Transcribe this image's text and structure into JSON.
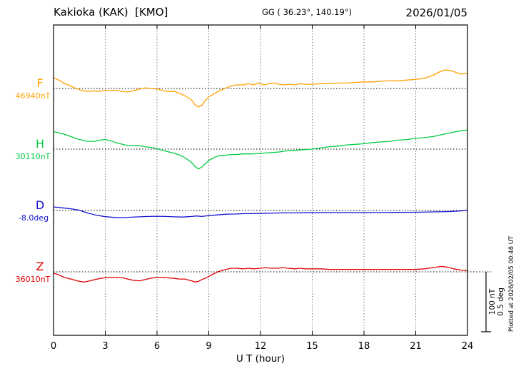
{
  "header": {
    "station": "Kakioka (KAK)  [KMO]",
    "coords": "GG ( 36.23°, 140.19°)",
    "date": "2026/01/05"
  },
  "scale_bar": {
    "top_label": "100 nT",
    "bottom_label": "0.5 deg"
  },
  "plotted_at": "Plotted at 2026/02/05 00:48 UT",
  "chart_data": {
    "type": "line",
    "title": "Kakioka (KAK) [KMO] magnetogram 2026/01/05",
    "xlabel": "U T (hour)",
    "x_range": [
      0,
      24
    ],
    "x_ticks": [
      0,
      3,
      6,
      9,
      12,
      15,
      18,
      21,
      24
    ],
    "grid": "dotted vertical every 3 h, dotted horizontal baseline per trace",
    "scale": {
      "nT_per_bar": 100,
      "deg_per_bar": 0.5
    },
    "series": [
      {
        "name": "F",
        "unit": "nT",
        "color": "#FFA000",
        "baseline_value": 46940,
        "baseline_label": "46940nT",
        "points": [
          [
            0,
            18
          ],
          [
            0.3,
            14
          ],
          [
            0.6,
            9
          ],
          [
            1,
            4
          ],
          [
            1.3,
            0
          ],
          [
            1.6,
            -3
          ],
          [
            2,
            -5
          ],
          [
            2.3,
            -4
          ],
          [
            2.6,
            -5
          ],
          [
            3,
            -3
          ],
          [
            3.3,
            -4
          ],
          [
            3.6,
            -3
          ],
          [
            4,
            -5
          ],
          [
            4.3,
            -6
          ],
          [
            4.6,
            -4
          ],
          [
            5,
            -1
          ],
          [
            5.3,
            1
          ],
          [
            5.6,
            0
          ],
          [
            6,
            -1
          ],
          [
            6.3,
            -3
          ],
          [
            6.6,
            -5
          ],
          [
            7,
            -5
          ],
          [
            7.3,
            -8
          ],
          [
            7.6,
            -12
          ],
          [
            8,
            -19
          ],
          [
            8.2,
            -27
          ],
          [
            8.4,
            -31
          ],
          [
            8.6,
            -28
          ],
          [
            8.8,
            -20
          ],
          [
            9,
            -14
          ],
          [
            9.3,
            -9
          ],
          [
            9.6,
            -4
          ],
          [
            10,
            1
          ],
          [
            10.3,
            4
          ],
          [
            10.6,
            6
          ],
          [
            11,
            6
          ],
          [
            11.3,
            8
          ],
          [
            11.6,
            6
          ],
          [
            11.9,
            9
          ],
          [
            12.2,
            6
          ],
          [
            12.5,
            8
          ],
          [
            12.8,
            9
          ],
          [
            13.1,
            7
          ],
          [
            13.4,
            6
          ],
          [
            13.7,
            7
          ],
          [
            14,
            6
          ],
          [
            14.3,
            8
          ],
          [
            14.6,
            7
          ],
          [
            15,
            7
          ],
          [
            15.5,
            8
          ],
          [
            16,
            8
          ],
          [
            16.5,
            9
          ],
          [
            17,
            9
          ],
          [
            17.5,
            10
          ],
          [
            18,
            11
          ],
          [
            18.5,
            11
          ],
          [
            19,
            12
          ],
          [
            19.5,
            13
          ],
          [
            20,
            13
          ],
          [
            20.5,
            14
          ],
          [
            21,
            15
          ],
          [
            21.5,
            17
          ],
          [
            22,
            22
          ],
          [
            22.4,
            28
          ],
          [
            22.7,
            31
          ],
          [
            23,
            30
          ],
          [
            23.3,
            27
          ],
          [
            23.6,
            24
          ],
          [
            24,
            25
          ]
        ]
      },
      {
        "name": "H",
        "unit": "nT",
        "color": "#00CC44",
        "baseline_value": 30110,
        "baseline_label": "30110nT",
        "points": [
          [
            0,
            29
          ],
          [
            0.3,
            27
          ],
          [
            0.6,
            25
          ],
          [
            1,
            21
          ],
          [
            1.5,
            16
          ],
          [
            2,
            13
          ],
          [
            2.4,
            13
          ],
          [
            2.7,
            15
          ],
          [
            3,
            16
          ],
          [
            3.3,
            14
          ],
          [
            3.6,
            11
          ],
          [
            4,
            8
          ],
          [
            4.3,
            6
          ],
          [
            4.6,
            6
          ],
          [
            5,
            6
          ],
          [
            5.3,
            4
          ],
          [
            5.6,
            3
          ],
          [
            6,
            1
          ],
          [
            6.3,
            -2
          ],
          [
            6.6,
            -4
          ],
          [
            7,
            -7
          ],
          [
            7.3,
            -10
          ],
          [
            7.6,
            -14
          ],
          [
            8,
            -22
          ],
          [
            8.2,
            -29
          ],
          [
            8.4,
            -33
          ],
          [
            8.6,
            -30
          ],
          [
            8.8,
            -24
          ],
          [
            9,
            -19
          ],
          [
            9.3,
            -14
          ],
          [
            9.6,
            -11
          ],
          [
            10,
            -10
          ],
          [
            10.3,
            -9
          ],
          [
            10.6,
            -9
          ],
          [
            11,
            -8
          ],
          [
            11.5,
            -8
          ],
          [
            12,
            -7
          ],
          [
            12.5,
            -6
          ],
          [
            13,
            -5
          ],
          [
            13.5,
            -3
          ],
          [
            14,
            -2
          ],
          [
            14.5,
            -1
          ],
          [
            15,
            0
          ],
          [
            15.5,
            2
          ],
          [
            16,
            4
          ],
          [
            16.5,
            5
          ],
          [
            17,
            7
          ],
          [
            17.5,
            8
          ],
          [
            18,
            9
          ],
          [
            18.5,
            11
          ],
          [
            19,
            12
          ],
          [
            19.5,
            13
          ],
          [
            20,
            15
          ],
          [
            20.5,
            16
          ],
          [
            21,
            18
          ],
          [
            21.5,
            19
          ],
          [
            22,
            21
          ],
          [
            22.5,
            24
          ],
          [
            23,
            27
          ],
          [
            23.5,
            30
          ],
          [
            24,
            32
          ]
        ]
      },
      {
        "name": "D",
        "unit": "deg",
        "color": "#1515D0",
        "baseline_value": -8.0,
        "baseline_label": "-8.0deg",
        "points": [
          [
            0,
            0.03
          ],
          [
            0.5,
            0.022
          ],
          [
            1,
            0.014
          ],
          [
            1.5,
            0.002
          ],
          [
            2,
            -0.022
          ],
          [
            2.5,
            -0.04
          ],
          [
            3,
            -0.052
          ],
          [
            3.5,
            -0.058
          ],
          [
            4,
            -0.06
          ],
          [
            4.5,
            -0.056
          ],
          [
            5,
            -0.053
          ],
          [
            5.5,
            -0.05
          ],
          [
            6,
            -0.048
          ],
          [
            6.5,
            -0.05
          ],
          [
            7,
            -0.053
          ],
          [
            7.5,
            -0.055
          ],
          [
            8,
            -0.05
          ],
          [
            8.3,
            -0.046
          ],
          [
            8.6,
            -0.05
          ],
          [
            9,
            -0.043
          ],
          [
            9.5,
            -0.037
          ],
          [
            10,
            -0.031
          ],
          [
            10.5,
            -0.03
          ],
          [
            11,
            -0.027
          ],
          [
            11.5,
            -0.026
          ],
          [
            12,
            -0.025
          ],
          [
            12.5,
            -0.023
          ],
          [
            13,
            -0.021
          ],
          [
            13.5,
            -0.02
          ],
          [
            14,
            -0.02
          ],
          [
            14.5,
            -0.019
          ],
          [
            15,
            -0.019
          ],
          [
            16,
            -0.018
          ],
          [
            17,
            -0.018
          ],
          [
            18,
            -0.018
          ],
          [
            19,
            -0.017
          ],
          [
            20,
            -0.016
          ],
          [
            21,
            -0.015
          ],
          [
            22,
            -0.012
          ],
          [
            23,
            -0.009
          ],
          [
            23.5,
            -0.005
          ],
          [
            24,
            0.001
          ]
        ]
      },
      {
        "name": "Z",
        "unit": "nT",
        "color": "#E00000",
        "baseline_value": 36010,
        "baseline_label": "36010nT",
        "points": [
          [
            0,
            -2
          ],
          [
            0.3,
            -5
          ],
          [
            0.6,
            -9
          ],
          [
            1,
            -12
          ],
          [
            1.5,
            -16
          ],
          [
            1.8,
            -17
          ],
          [
            2.1,
            -15
          ],
          [
            2.4,
            -13
          ],
          [
            2.7,
            -11
          ],
          [
            3,
            -10
          ],
          [
            3.3,
            -9
          ],
          [
            3.6,
            -9
          ],
          [
            4,
            -10
          ],
          [
            4.3,
            -12
          ],
          [
            4.6,
            -14
          ],
          [
            5,
            -15
          ],
          [
            5.3,
            -13
          ],
          [
            5.6,
            -11
          ],
          [
            6,
            -9
          ],
          [
            6.3,
            -9
          ],
          [
            6.6,
            -10
          ],
          [
            7,
            -11
          ],
          [
            7.3,
            -12
          ],
          [
            7.6,
            -12
          ],
          [
            8,
            -15
          ],
          [
            8.2,
            -17
          ],
          [
            8.4,
            -16
          ],
          [
            8.6,
            -13
          ],
          [
            9,
            -8
          ],
          [
            9.3,
            -3
          ],
          [
            9.6,
            1
          ],
          [
            10,
            4
          ],
          [
            10.3,
            6
          ],
          [
            10.6,
            6
          ],
          [
            11,
            5
          ],
          [
            11.3,
            6
          ],
          [
            11.6,
            5
          ],
          [
            12,
            6
          ],
          [
            12.3,
            7
          ],
          [
            12.6,
            6
          ],
          [
            13,
            6
          ],
          [
            13.3,
            7
          ],
          [
            13.6,
            6
          ],
          [
            14,
            5
          ],
          [
            14.3,
            6
          ],
          [
            14.6,
            5
          ],
          [
            15,
            5
          ],
          [
            15.5,
            5
          ],
          [
            16,
            4
          ],
          [
            16.5,
            4
          ],
          [
            17,
            4
          ],
          [
            17.5,
            4
          ],
          [
            18,
            4
          ],
          [
            18.5,
            4
          ],
          [
            19,
            4
          ],
          [
            19.5,
            4
          ],
          [
            20,
            4
          ],
          [
            20.5,
            4
          ],
          [
            21,
            4
          ],
          [
            21.5,
            5
          ],
          [
            22,
            7
          ],
          [
            22.5,
            9
          ],
          [
            22.8,
            8
          ],
          [
            23.2,
            5
          ],
          [
            23.6,
            3
          ],
          [
            24,
            2
          ]
        ]
      }
    ]
  }
}
